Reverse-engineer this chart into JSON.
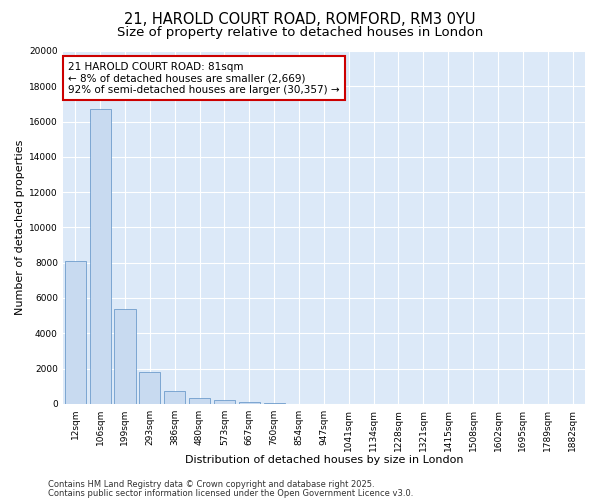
{
  "title1": "21, HAROLD COURT ROAD, ROMFORD, RM3 0YU",
  "title2": "Size of property relative to detached houses in London",
  "xlabel": "Distribution of detached houses by size in London",
  "ylabel": "Number of detached properties",
  "categories": [
    "12sqm",
    "106sqm",
    "199sqm",
    "293sqm",
    "386sqm",
    "480sqm",
    "573sqm",
    "667sqm",
    "760sqm",
    "854sqm",
    "947sqm",
    "1041sqm",
    "1134sqm",
    "1228sqm",
    "1321sqm",
    "1415sqm",
    "1508sqm",
    "1602sqm",
    "1695sqm",
    "1789sqm",
    "1882sqm"
  ],
  "values": [
    8100,
    16700,
    5400,
    1800,
    750,
    350,
    200,
    100,
    50,
    0,
    0,
    0,
    0,
    0,
    0,
    0,
    0,
    0,
    0,
    0,
    0
  ],
  "bar_color": "#c8daf0",
  "bar_edge_color": "#5a8fc4",
  "bg_color": "#ffffff",
  "plot_bg_color": "#dce9f8",
  "grid_color": "#ffffff",
  "annotation_text": "21 HAROLD COURT ROAD: 81sqm\n← 8% of detached houses are smaller (2,669)\n92% of semi-detached houses are larger (30,357) →",
  "annotation_box_color": "#cc0000",
  "ylim": [
    0,
    20000
  ],
  "yticks": [
    0,
    2000,
    4000,
    6000,
    8000,
    10000,
    12000,
    14000,
    16000,
    18000,
    20000
  ],
  "footer1": "Contains HM Land Registry data © Crown copyright and database right 2025.",
  "footer2": "Contains public sector information licensed under the Open Government Licence v3.0.",
  "title1_fontsize": 10.5,
  "title2_fontsize": 9.5,
  "annotation_fontsize": 7.5,
  "tick_fontsize": 6.5,
  "axis_label_fontsize": 8,
  "footer_fontsize": 6
}
